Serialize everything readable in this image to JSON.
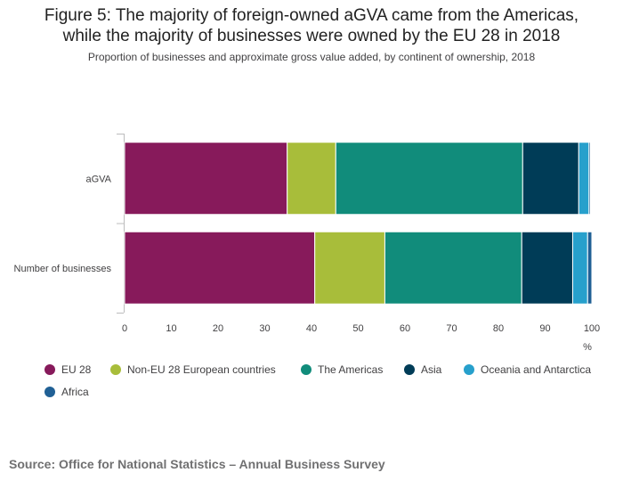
{
  "title_line1": "Figure 5: The majority of foreign-owned aGVA came from the Americas,",
  "title_line2": "while the majority of businesses were owned by the EU 28 in 2018",
  "subtitle": "Proportion of businesses and approximate gross value added, by continent of ownership, 2018",
  "source": "Source: Office for National Statistics – Annual Business Survey",
  "chart_data": {
    "type": "bar",
    "orientation": "horizontal",
    "stacked": true,
    "categories": [
      "aGVA",
      "Number of businesses"
    ],
    "series": [
      {
        "name": "EU 28",
        "color": "#871a5b",
        "values": [
          34.8,
          40.7
        ]
      },
      {
        "name": "Non-EU 28 European countries",
        "color": "#a8bd3a",
        "values": [
          10.4,
          15.0
        ]
      },
      {
        "name": "The Americas",
        "color": "#118c7b",
        "values": [
          40.0,
          29.3
        ]
      },
      {
        "name": "Asia",
        "color": "#003c57",
        "values": [
          12.0,
          10.9
        ]
      },
      {
        "name": "Oceania and Antarctica",
        "color": "#27a0cc",
        "values": [
          2.2,
          3.2
        ]
      },
      {
        "name": "Africa",
        "color": "#206095",
        "values": [
          0.3,
          0.9
        ]
      }
    ],
    "xlim": [
      0,
      100
    ],
    "xticks": [
      "0",
      "10",
      "20",
      "30",
      "40",
      "50",
      "60",
      "70",
      "80",
      "90",
      "100"
    ],
    "xlabel": "%",
    "ylabel": "",
    "grid": false,
    "legend_position": "bottom"
  }
}
